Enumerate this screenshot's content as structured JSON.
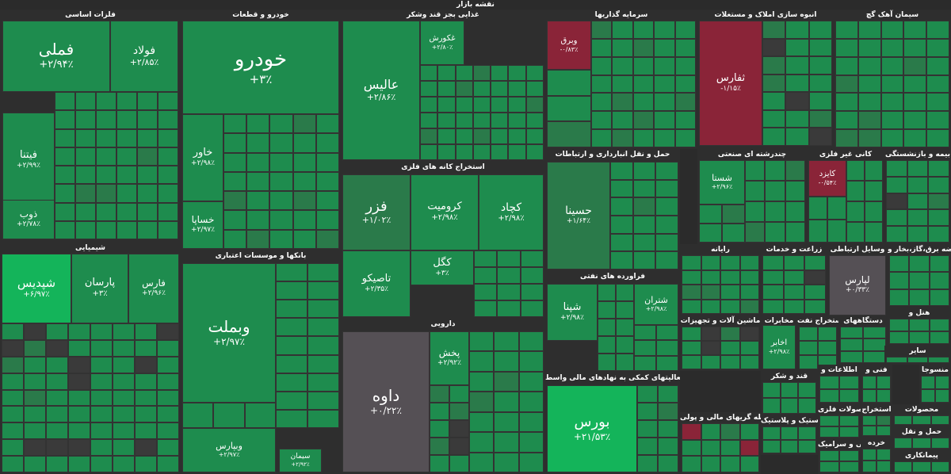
{
  "market_title": "نقشه بازار",
  "colors": {
    "green": "#1e8c4e",
    "bright": "#14b45a",
    "mid": "#2a7a4a",
    "grey": "#555055",
    "red": "#8a2438",
    "dark": "#3a3a3a"
  },
  "sectors": [
    {
      "id": "felezat",
      "title": "فلزات اساسی"
    },
    {
      "id": "khodro",
      "title": "خودرو و قطعات"
    },
    {
      "id": "ghazaei",
      "title": "غذایی بجز قند وشکر"
    },
    {
      "id": "sarmaye",
      "title": "سرمایه گذاریها"
    },
    {
      "id": "anbouh",
      "title": "انبوه سازی املاک و مستغلات"
    },
    {
      "id": "siman",
      "title": "سیمان آهک گچ"
    },
    {
      "id": "estekhraj",
      "title": "استخراج کانه های فلزی"
    },
    {
      "id": "kani",
      "title": "کانی غیر فلزی"
    },
    {
      "id": "bime",
      "title": "بیمه و بازنشستگی"
    },
    {
      "id": "chandreshte",
      "title": "چندرشته ای صنعتی"
    },
    {
      "id": "hamlonaghl",
      "title": "حمل و نقل انبارداری و ارتباطات"
    },
    {
      "id": "shimiyaei",
      "title": "شیمیایی"
    },
    {
      "id": "bank",
      "title": "بانکها و موسسات اعتباری"
    },
    {
      "id": "rayane",
      "title": "رایانه"
    },
    {
      "id": "zeraat",
      "title": "زراعت و خدمات"
    },
    {
      "id": "vasayel",
      "title": "وسایل ارتباطی"
    },
    {
      "id": "arze",
      "title": "عرضه برق،گاز،بخار و"
    },
    {
      "id": "faravarde",
      "title": "فراورده های نفتی"
    },
    {
      "id": "darouei",
      "title": "دارویی"
    },
    {
      "id": "mashin",
      "title": "ماشین آلات و تجهیزات"
    },
    {
      "id": "mokhaberat",
      "title": "مخابرات"
    },
    {
      "id": "estekhrajnaft",
      "title": "استخراج نفت"
    },
    {
      "id": "dastgah",
      "title": "دستگاههای"
    },
    {
      "id": "hotel",
      "title": "هتل و"
    },
    {
      "id": "faaliat",
      "title": "فعالیتهای کمکی به نهادهای مالی واسط"
    },
    {
      "id": "ghand",
      "title": "قند و شکر"
    },
    {
      "id": "etelaat",
      "title": "اطلاعات و"
    },
    {
      "id": "fani",
      "title": "فنی و"
    },
    {
      "id": "vasete",
      "title": "واسطه گریهای مالی و پولی"
    },
    {
      "id": "lastik",
      "title": "لاستیک و پلاستیک"
    },
    {
      "id": "mahsoolatfelezi",
      "title": "محصولات فلزی"
    },
    {
      "id": "mahsoolat",
      "title": "محصولات"
    },
    {
      "id": "kashi",
      "title": "کاشی و سرامیک"
    },
    {
      "id": "khorde",
      "title": "خرده"
    },
    {
      "id": "estekhrajdigar",
      "title": "استخراج"
    },
    {
      "id": "mansoojat",
      "title": "منسوجا"
    },
    {
      "id": "hamlvanagh",
      "title": "حمل و نقل"
    },
    {
      "id": "peymankari",
      "title": "پیمانکاری"
    },
    {
      "id": "saayer",
      "title": "سایر"
    }
  ],
  "tiles": [
    {
      "name": "فملی",
      "change": "+۲/۹۴٪"
    },
    {
      "name": "فولاد",
      "change": "+۲/۸۵٪"
    },
    {
      "name": "خودرو",
      "change": "+۳٪"
    },
    {
      "name": "عالیس",
      "change": "+۲/۸۶٪"
    },
    {
      "name": "غکورش",
      "change": "+۲/۸۰٪"
    },
    {
      "name": "وبرق",
      "change": "-۰/۸۳٪"
    },
    {
      "name": "ثفارس",
      "change": "-۱/۱۵٪"
    },
    {
      "name": "فزر",
      "change": "+۱/۰۲٪"
    },
    {
      "name": "کرومیت",
      "change": "+۲/۹۸٪"
    },
    {
      "name": "کچاد",
      "change": "+۲/۹۸٪"
    },
    {
      "name": "حسینا",
      "change": "+۱/۶۴٪"
    },
    {
      "name": "شپدیس",
      "change": "+۶/۹۷٪"
    },
    {
      "name": "پارسان",
      "change": "+۳٪"
    },
    {
      "name": "فارس",
      "change": "+۲/۹۶٪"
    },
    {
      "name": "وبملت",
      "change": "+۲/۹۷٪"
    },
    {
      "name": "داوه",
      "change": "+۰/۲۲٪"
    },
    {
      "name": "بورس",
      "change": "+۲۱/۵۳٪"
    },
    {
      "name": "شپنا",
      "change": "+۲/۹۸٪"
    },
    {
      "name": "تاصیکو",
      "change": "+۲/۳۵٪"
    },
    {
      "name": "کگل",
      "change": "+۳٪"
    },
    {
      "name": "لپارس",
      "change": "+۰/۳۳٪"
    },
    {
      "name": "کایزد",
      "change": "-۰/۵۴٪"
    },
    {
      "name": "شستا",
      "change": "+۲/۹۶٪"
    },
    {
      "name": "فیتنا",
      "change": "+۲/۹۹٪"
    },
    {
      "name": "خاور",
      "change": "+۲/۹۸٪"
    },
    {
      "name": "خساپا",
      "change": "+۲/۹۷٪"
    },
    {
      "name": "ذوب",
      "change": "+۲/۷۸٪"
    },
    {
      "name": "پخش",
      "change": "+۲/۹۲٪"
    },
    {
      "name": "وبپارس",
      "change": "+۲/۹۷٪"
    },
    {
      "name": "شتران",
      "change": "+۲/۹۸٪"
    },
    {
      "name": "اخابر",
      "change": "+۲/۹۸٪"
    },
    {
      "name": "سیمان",
      "change": "+۲/۹۲٪"
    }
  ]
}
